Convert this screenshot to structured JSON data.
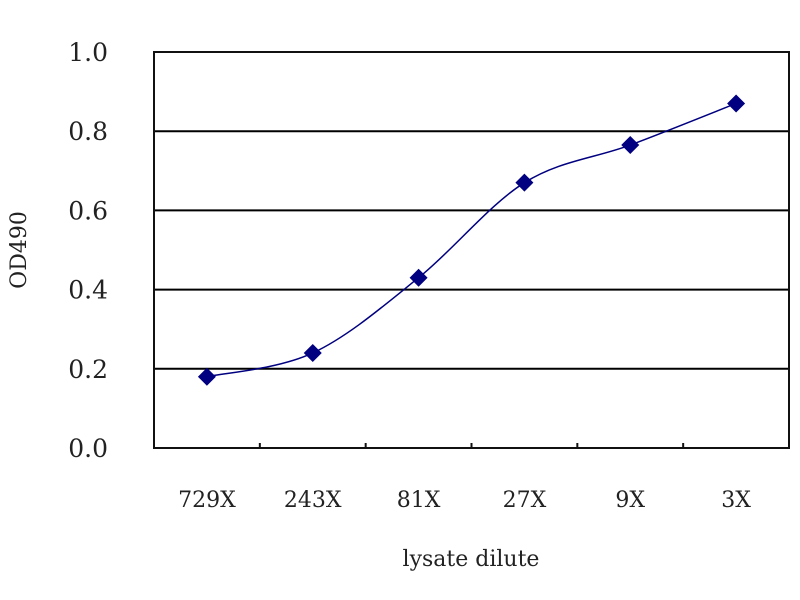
{
  "chart_data": {
    "type": "line",
    "title": "",
    "xlabel": "lysate dilute",
    "ylabel": "OD490",
    "categories": [
      "729X",
      "243X",
      "81X",
      "27X",
      "9X",
      "3X"
    ],
    "series": [
      {
        "values": [
          0.18,
          0.24,
          0.43,
          0.67,
          0.765,
          0.87
        ]
      }
    ],
    "ylim": [
      0,
      1.0
    ],
    "yticks": [
      "0.0",
      "0.2",
      "0.4",
      "0.6",
      "0.8",
      "1.0"
    ],
    "grid": "horizontal major",
    "legend": "none",
    "marker": "diamond",
    "smooth": true,
    "colors": {
      "series": "#000080",
      "grid": "#000000",
      "background": "#ffffff"
    }
  }
}
